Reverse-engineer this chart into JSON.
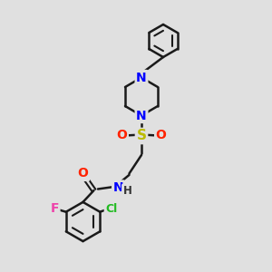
{
  "background_color": "#e0e0e0",
  "bond_color": "#1a1a1a",
  "atom_colors": {
    "N": "#0000ff",
    "O": "#ff2200",
    "S": "#bbbb00",
    "F": "#ee44aa",
    "Cl": "#22bb22",
    "H": "#333333",
    "C": "#1a1a1a"
  },
  "figsize": [
    3.0,
    3.0
  ],
  "dpi": 100
}
